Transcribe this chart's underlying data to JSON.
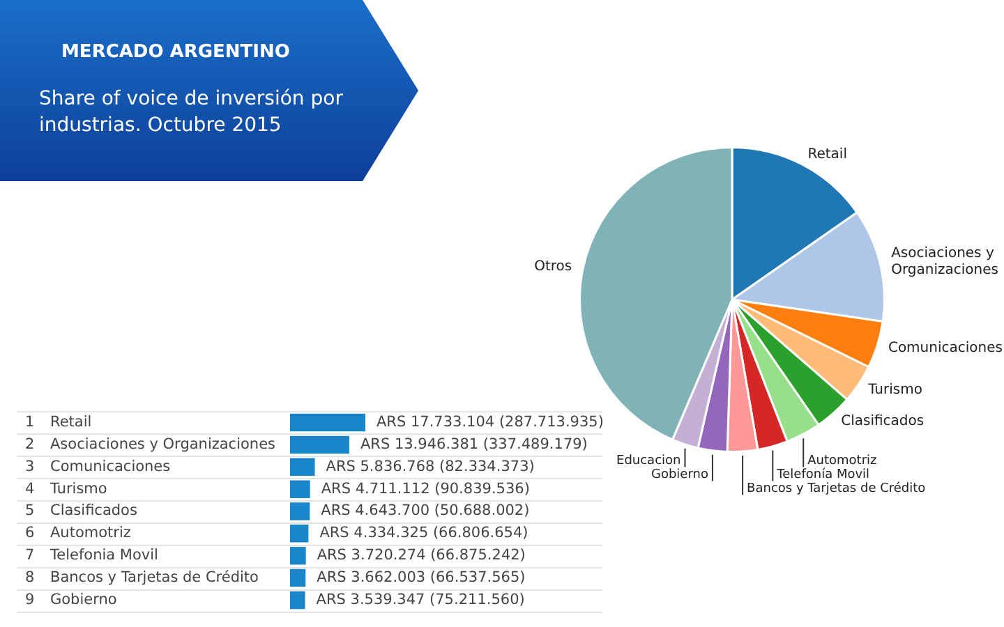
{
  "chart_data": [
    {
      "type": "pie",
      "title": "MERCADO ARGENTINO",
      "subtitle": "Share of voice de inversión por industrias.  Octubre 2015",
      "categories": [
        "Retail",
        "Asociaciones y Organizaciones",
        "Comunicaciones",
        "Turismo",
        "Clasificados",
        "Automotriz",
        "Telefonía Movil",
        "Bancos y Tarjetas de Crédito",
        "Gobierno",
        "Educacion",
        "Otros"
      ],
      "values": [
        15.3,
        12.0,
        5.0,
        4.1,
        4.0,
        3.7,
        3.2,
        3.2,
        3.1,
        2.8,
        43.6
      ],
      "colors": [
        "#1f77b4",
        "#aec7e8",
        "#ff7f0e",
        "#ffbb78",
        "#2ca02c",
        "#98df8a",
        "#d62728",
        "#ff9896",
        "#9467bd",
        "#c5b0d5",
        "#7fb3b8"
      ]
    },
    {
      "type": "bar",
      "orientation": "horizontal",
      "grid": "y",
      "color": "#1a86c9",
      "categories": [
        "Retail",
        "Asociaciones y Organizaciones",
        "Comunicaciones",
        "Turismo",
        "Clasificados",
        "Automotriz",
        "Telefonia Movil",
        "Bancos y Tarjetas de Crédito",
        "Gobierno"
      ],
      "values": [
        17733104,
        13946381,
        5836768,
        4711112,
        4643700,
        4334325,
        3720274,
        3662003,
        3539347
      ],
      "value_labels": [
        "ARS 17.733.104 (287.713.935)",
        "ARS 13.946.381 (337.489.179)",
        "ARS 5.836.768 (82.334.373)",
        "ARS 4.711.112 (90.839.536)",
        "ARS 4.643.700 (50.688.002)",
        "ARS 4.334.325 (66.806.654)",
        "ARS 3.720.274 (66.875.242)",
        "ARS 3.662.003 (66.537.565)",
        "ARS 3.539.347 (75.211.560)"
      ],
      "annotations": [
        "1",
        "2",
        "3",
        "4",
        "5",
        "6",
        "7",
        "8",
        "9"
      ]
    }
  ]
}
